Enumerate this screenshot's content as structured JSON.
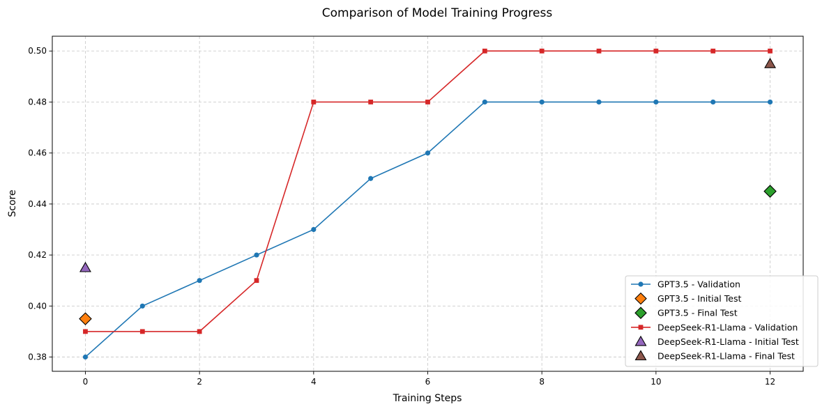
{
  "chart_data": {
    "type": "line",
    "title": "Comparison of Model Training Progress",
    "xlabel": "Training Steps",
    "ylabel": "Score",
    "xlim": [
      -0.58,
      12.58
    ],
    "ylim": [
      0.3744,
      0.5058
    ],
    "xticks": [
      0,
      2,
      4,
      6,
      8,
      10,
      12
    ],
    "yticks": [
      0.38,
      0.4,
      0.42,
      0.44,
      0.46,
      0.48,
      0.5
    ],
    "xtick_labels": [
      "0",
      "2",
      "4",
      "6",
      "8",
      "10",
      "12"
    ],
    "ytick_labels": [
      "0.38",
      "0.40",
      "0.42",
      "0.44",
      "0.46",
      "0.48",
      "0.50"
    ],
    "grid": true,
    "legend_position": "lower-right",
    "series": [
      {
        "name": "GPT3.5 - Validation",
        "kind": "line",
        "marker": "circle",
        "color": "#1f77b4",
        "x": [
          0,
          1,
          2,
          3,
          4,
          5,
          6,
          7,
          8,
          9,
          10,
          11,
          12
        ],
        "y": [
          0.38,
          0.4,
          0.41,
          0.42,
          0.43,
          0.45,
          0.46,
          0.48,
          0.48,
          0.48,
          0.48,
          0.48,
          0.48
        ]
      },
      {
        "name": "GPT3.5 - Initial Test",
        "kind": "scatter",
        "marker": "diamond",
        "color": "#ff7f0e",
        "x": [
          0
        ],
        "y": [
          0.395
        ]
      },
      {
        "name": "GPT3.5 - Final Test",
        "kind": "scatter",
        "marker": "diamond",
        "color": "#2ca02c",
        "x": [
          12
        ],
        "y": [
          0.445
        ]
      },
      {
        "name": "DeepSeek-R1-Llama - Validation",
        "kind": "line",
        "marker": "square",
        "color": "#d62728",
        "x": [
          0,
          1,
          2,
          3,
          4,
          5,
          6,
          7,
          8,
          9,
          10,
          11,
          12
        ],
        "y": [
          0.39,
          0.39,
          0.39,
          0.41,
          0.48,
          0.48,
          0.48,
          0.5,
          0.5,
          0.5,
          0.5,
          0.5,
          0.5
        ]
      },
      {
        "name": "DeepSeek-R1-Llama - Initial Test",
        "kind": "scatter",
        "marker": "triangle",
        "color": "#9467bd",
        "x": [
          0
        ],
        "y": [
          0.415
        ]
      },
      {
        "name": "DeepSeek-R1-Llama - Final Test",
        "kind": "scatter",
        "marker": "triangle",
        "color": "#8c564b",
        "x": [
          12
        ],
        "y": [
          0.495
        ]
      }
    ]
  }
}
